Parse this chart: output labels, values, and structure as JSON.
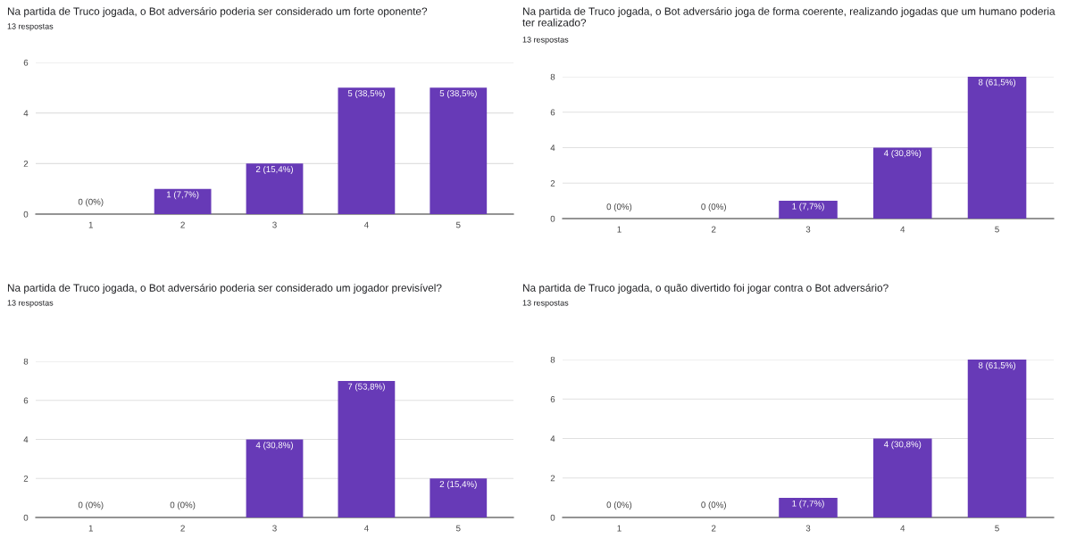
{
  "chart_data": [
    {
      "type": "bar",
      "title": "Na partida de Truco jogada, o Bot adversário poderia ser considerado um forte oponente?",
      "subtitle": "13 respostas",
      "categories": [
        "1",
        "2",
        "3",
        "4",
        "5"
      ],
      "values": [
        0,
        1,
        2,
        5,
        5
      ],
      "value_labels": [
        "0 (0%)",
        "1 (7,7%)",
        "2 (15,4%)",
        "5 (38,5%)",
        "5 (38,5%)"
      ],
      "color": "#673ab7",
      "ylim": [
        0,
        6
      ],
      "yticks": [
        0,
        2,
        4,
        6
      ],
      "grid": "y"
    },
    {
      "type": "bar",
      "title": "Na partida de Truco jogada, o Bot adversário joga de forma coerente, realizando jogadas que um humano poderia ter realizado?",
      "subtitle": "13 respostas",
      "categories": [
        "1",
        "2",
        "3",
        "4",
        "5"
      ],
      "values": [
        0,
        0,
        1,
        4,
        8
      ],
      "value_labels": [
        "0 (0%)",
        "0 (0%)",
        "1 (7,7%)",
        "4 (30,8%)",
        "8 (61,5%)"
      ],
      "color": "#673ab7",
      "ylim": [
        0,
        8
      ],
      "yticks": [
        0,
        2,
        4,
        6,
        8
      ],
      "grid": "y"
    },
    {
      "type": "bar",
      "title": "Na partida de Truco jogada, o Bot adversário poderia ser considerado um jogador previsível?",
      "subtitle": "13 respostas",
      "categories": [
        "1",
        "2",
        "3",
        "4",
        "5"
      ],
      "values": [
        0,
        0,
        4,
        7,
        2
      ],
      "value_labels": [
        "0 (0%)",
        "0 (0%)",
        "4 (30,8%)",
        "7 (53,8%)",
        "2 (15,4%)"
      ],
      "color": "#673ab7",
      "ylim": [
        0,
        8
      ],
      "yticks": [
        0,
        2,
        4,
        6,
        8
      ],
      "grid": "y"
    },
    {
      "type": "bar",
      "title": "Na partida de Truco jogada, o quão divertido foi jogar contra o Bot adversário?",
      "subtitle": "13 respostas",
      "categories": [
        "1",
        "2",
        "3",
        "4",
        "5"
      ],
      "values": [
        0,
        0,
        1,
        4,
        8
      ],
      "value_labels": [
        "0 (0%)",
        "0 (0%)",
        "1 (7,7%)",
        "4 (30,8%)",
        "8 (61,5%)"
      ],
      "color": "#673ab7",
      "ylim": [
        0,
        8
      ],
      "yticks": [
        0,
        2,
        4,
        6,
        8
      ],
      "grid": "y"
    }
  ]
}
